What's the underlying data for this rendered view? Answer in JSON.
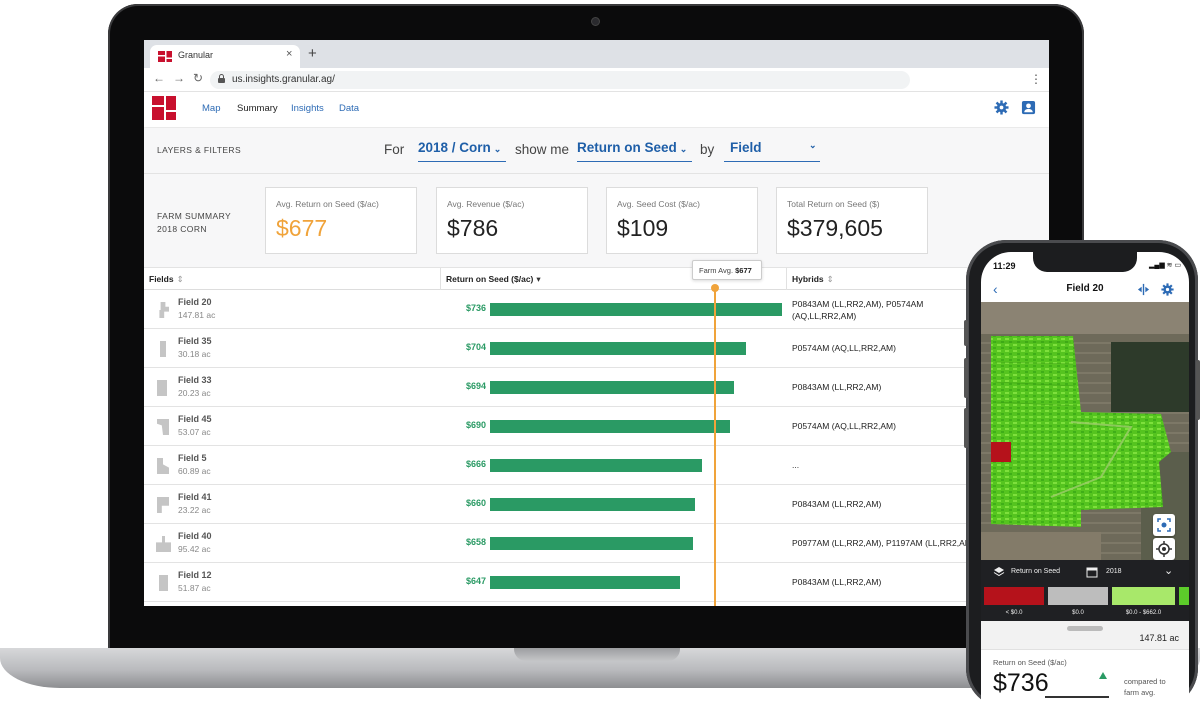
{
  "browser": {
    "tab_title": "Granular",
    "close_glyph": "×",
    "newtab_glyph": "+",
    "url": "us.insights.granular.ag/",
    "menu_glyph": "⋮",
    "back_glyph": "←",
    "forward_glyph": "→",
    "reload_glyph": "↻"
  },
  "nav": {
    "items": [
      {
        "label": "Map"
      },
      {
        "label": "Summary"
      },
      {
        "label": "Insights"
      },
      {
        "label": "Data"
      }
    ],
    "active": "Summary"
  },
  "filters": {
    "section_label": "LAYERS & FILTERS",
    "for_text": "For",
    "season": "2018 / Corn",
    "showme_text": "show me",
    "metric": "Return on Seed",
    "by_text": "by",
    "groupby": "Field",
    "caret": "⌄"
  },
  "summary": {
    "label_line1": "FARM SUMMARY",
    "label_line2": "2018 CORN",
    "cards": [
      {
        "label": "Avg. Return on Seed ($/ac)",
        "value": "$677",
        "color": "#f0a33a"
      },
      {
        "label": "Avg. Revenue ($/ac)",
        "value": "$786"
      },
      {
        "label": "Avg. Seed Cost ($/ac)",
        "value": "$109"
      },
      {
        "label": "Total Return on Seed ($)",
        "value": "$379,605"
      }
    ]
  },
  "table": {
    "columns": [
      "Fields",
      "Return on Seed ($/ac)",
      "Hybrids"
    ],
    "farm_avg_label": "Farm Avg.",
    "farm_avg_value": "$677",
    "farm_avg_number": 677,
    "axis_max": 736,
    "rows": [
      {
        "name": "Field 20",
        "acres": "147.81 ac",
        "ros": "$736",
        "ros_value": 736,
        "hybrid": "P0843AM (LL,RR2,AM), P0574AM",
        "hybrid2": "(AQ,LL,RR2,AM)"
      },
      {
        "name": "Field 35",
        "acres": "30.18 ac",
        "ros": "$704",
        "ros_value": 704,
        "hybrid": "P0574AM (AQ,LL,RR2,AM)",
        "hybrid2": ""
      },
      {
        "name": "Field 33",
        "acres": "20.23 ac",
        "ros": "$694",
        "ros_value": 694,
        "hybrid": "P0843AM (LL,RR2,AM)",
        "hybrid2": ""
      },
      {
        "name": "Field 45",
        "acres": "53.07 ac",
        "ros": "$690",
        "ros_value": 690,
        "hybrid": "P0574AM (AQ,LL,RR2,AM)",
        "hybrid2": ""
      },
      {
        "name": "Field 5",
        "acres": "60.89 ac",
        "ros": "$666",
        "ros_value": 666,
        "hybrid": "...",
        "hybrid2": ""
      },
      {
        "name": "Field 41",
        "acres": "23.22 ac",
        "ros": "$660",
        "ros_value": 660,
        "hybrid": "P0843AM (LL,RR2,AM)",
        "hybrid2": ""
      },
      {
        "name": "Field 40",
        "acres": "95.42 ac",
        "ros": "$658",
        "ros_value": 658,
        "hybrid": "P0977AM (LL,RR2,AM), P1197AM (LL,RR2,AM)",
        "hybrid2": ""
      },
      {
        "name": "Field 12",
        "acres": "51.87 ac",
        "ros": "$647",
        "ros_value": 647,
        "hybrid": "P0843AM (LL,RR2,AM)",
        "hybrid2": ""
      }
    ],
    "bar_color": "#2a9a64",
    "avg_color": "#f0a33a"
  },
  "phone": {
    "time": "11:29",
    "status": "▂▄▆ ≋ ▭",
    "title": "Field 20",
    "back_glyph": "‹",
    "layer_label": "Return on Seed",
    "year": "2018",
    "legend": [
      {
        "label": "< $0.0",
        "color": "#b5121b"
      },
      {
        "label": "$0.0",
        "color": "#bdbdbd"
      },
      {
        "label": "$0.0 - $662.0",
        "color": "#a8e86a"
      }
    ],
    "acres": "147.81 ac",
    "metric_label": "Return on Seed ($/ac)",
    "metric_value": "$736",
    "compare_line1": "compared to",
    "compare_line2": "farm avg."
  }
}
